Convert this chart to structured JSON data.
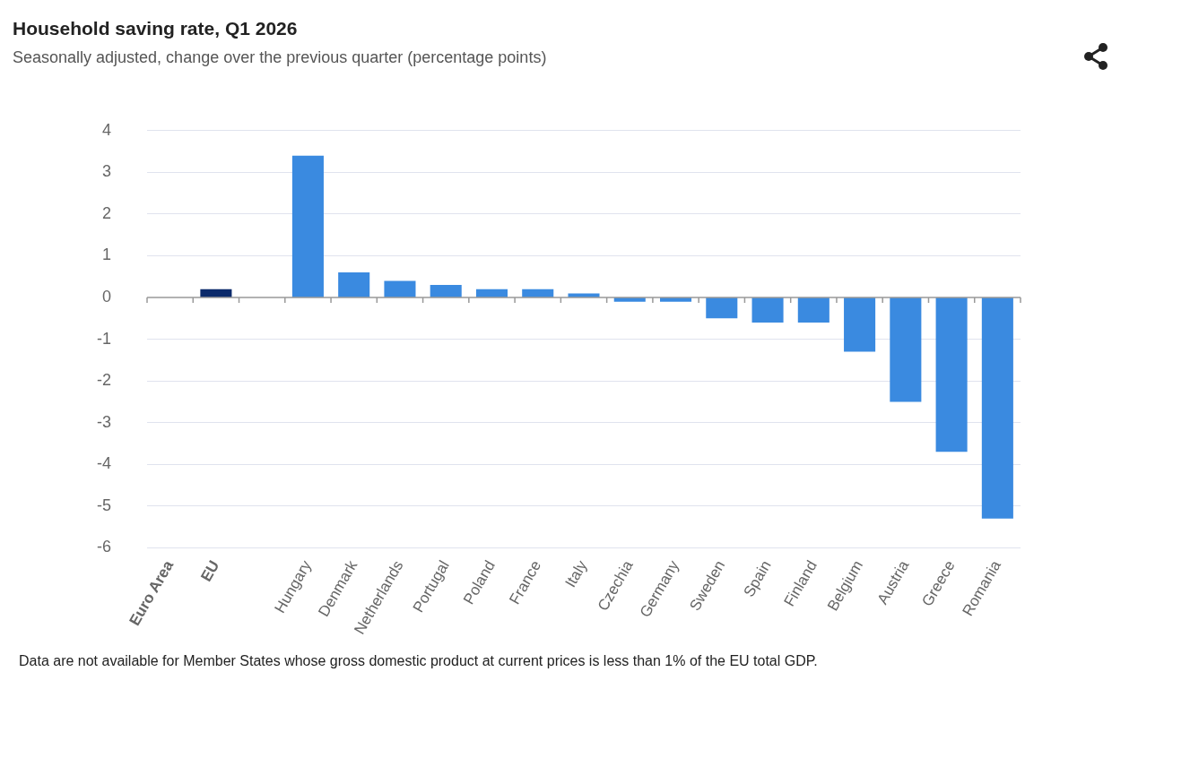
{
  "chart_data": {
    "type": "bar",
    "title": "Household saving rate, Q1 2026",
    "subtitle": "Seasonally adjusted, change over the previous quarter (percentage points)",
    "categories": [
      "Euro Area",
      "EU",
      null,
      "Hungary",
      "Denmark",
      "Netherlands",
      "Portugal",
      "Poland",
      "France",
      "Italy",
      "Czechia",
      "Germany",
      "Sweden",
      "Spain",
      "Finland",
      "Belgium",
      "Austria",
      "Greece",
      "Romania"
    ],
    "values": [
      null,
      0.2,
      null,
      3.4,
      0.6,
      0.4,
      0.3,
      0.2,
      0.2,
      0.1,
      -0.1,
      -0.1,
      -0.5,
      -0.6,
      -0.6,
      -1.3,
      -2.5,
      -3.7,
      -5.3
    ],
    "colors": [
      "#3a8ae0",
      "#0b2a6b",
      "#3a8ae0",
      "#3a8ae0",
      "#3a8ae0",
      "#3a8ae0",
      "#3a8ae0",
      "#3a8ae0",
      "#3a8ae0",
      "#3a8ae0",
      "#3a8ae0",
      "#3a8ae0",
      "#3a8ae0",
      "#3a8ae0",
      "#3a8ae0",
      "#3a8ae0",
      "#3a8ae0",
      "#3a8ae0",
      "#3a8ae0"
    ],
    "ylim": [
      -6,
      4
    ],
    "yticks": [
      -6,
      -5,
      -4,
      -3,
      -2,
      -1,
      0,
      1,
      2,
      3,
      4
    ],
    "grid": "y",
    "legend": false,
    "annotations": [
      "Data are not available for Member States whose gross domestic product at current prices is less than 1% of the EU total GDP."
    ]
  }
}
